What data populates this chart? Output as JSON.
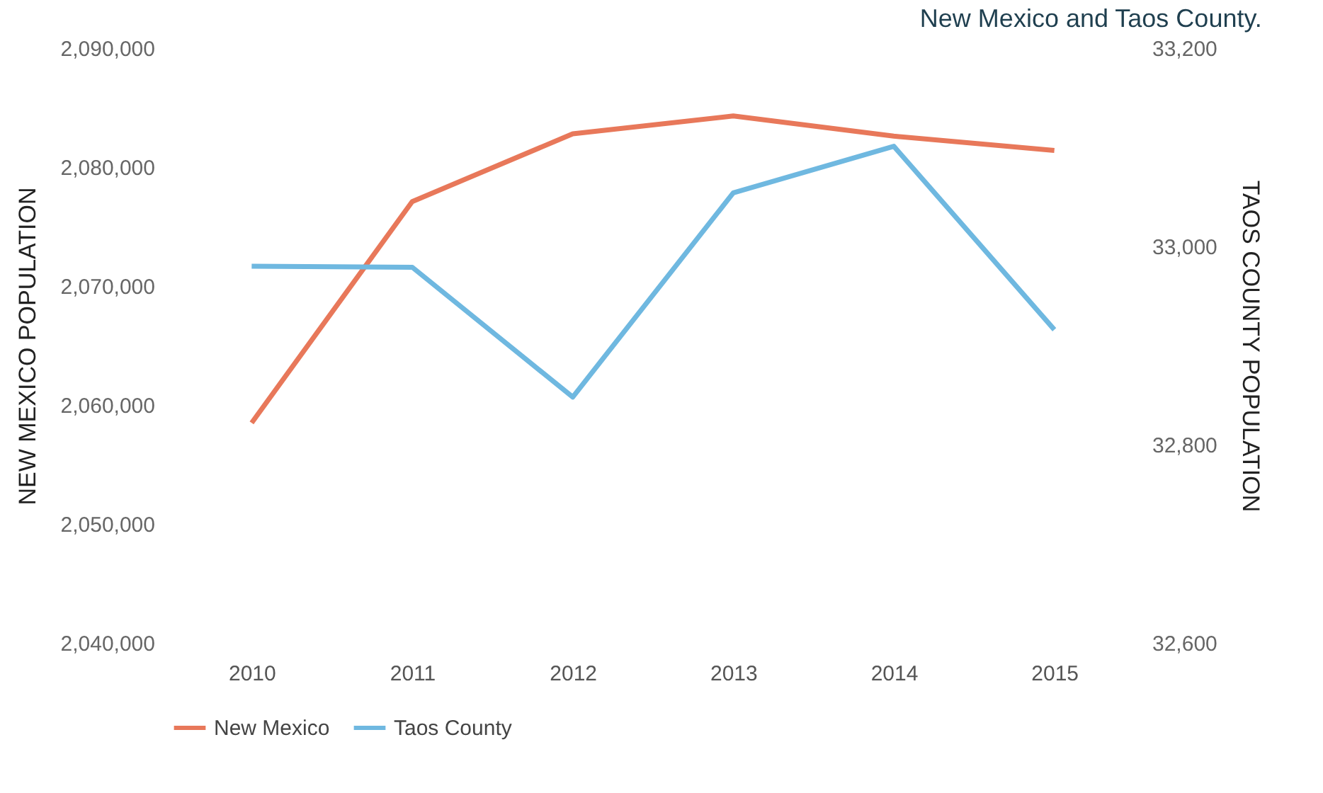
{
  "chart_data": {
    "type": "line",
    "title": "New Mexico and Taos County.",
    "categories": [
      "2010",
      "2011",
      "2012",
      "2013",
      "2014",
      "2015"
    ],
    "series": [
      {
        "name": "New Mexico",
        "color": "#e8785a",
        "values": [
          2058500,
          2077100,
          2082800,
          2084300,
          2082600,
          2081400
        ]
      },
      {
        "name": "Taos County",
        "color": "#6fb8e0",
        "axis": "y2",
        "values": [
          32980,
          32979,
          32848,
          33054,
          33101,
          32916
        ]
      }
    ],
    "ylabel": "NEW MEXICO POPULATION",
    "y2label": "TAOS COUNTY POPULATION",
    "ylim": [
      2040000,
      2090000
    ],
    "yticks": [
      {
        "value": 2040000,
        "label": "2,040,000"
      },
      {
        "value": 2050000,
        "label": "2,050,000"
      },
      {
        "value": 2060000,
        "label": "2,060,000"
      },
      {
        "value": 2070000,
        "label": "2,070,000"
      },
      {
        "value": 2080000,
        "label": "2,080,000"
      },
      {
        "value": 2090000,
        "label": "2,090,000"
      }
    ],
    "y2lim": [
      32600,
      33200
    ],
    "y2ticks": [
      {
        "value": 32600,
        "label": "32,600"
      },
      {
        "value": 32800,
        "label": "32,800"
      },
      {
        "value": 33000,
        "label": "33,000"
      },
      {
        "value": 33200,
        "label": "33,200"
      }
    ],
    "legend": "bottom"
  }
}
